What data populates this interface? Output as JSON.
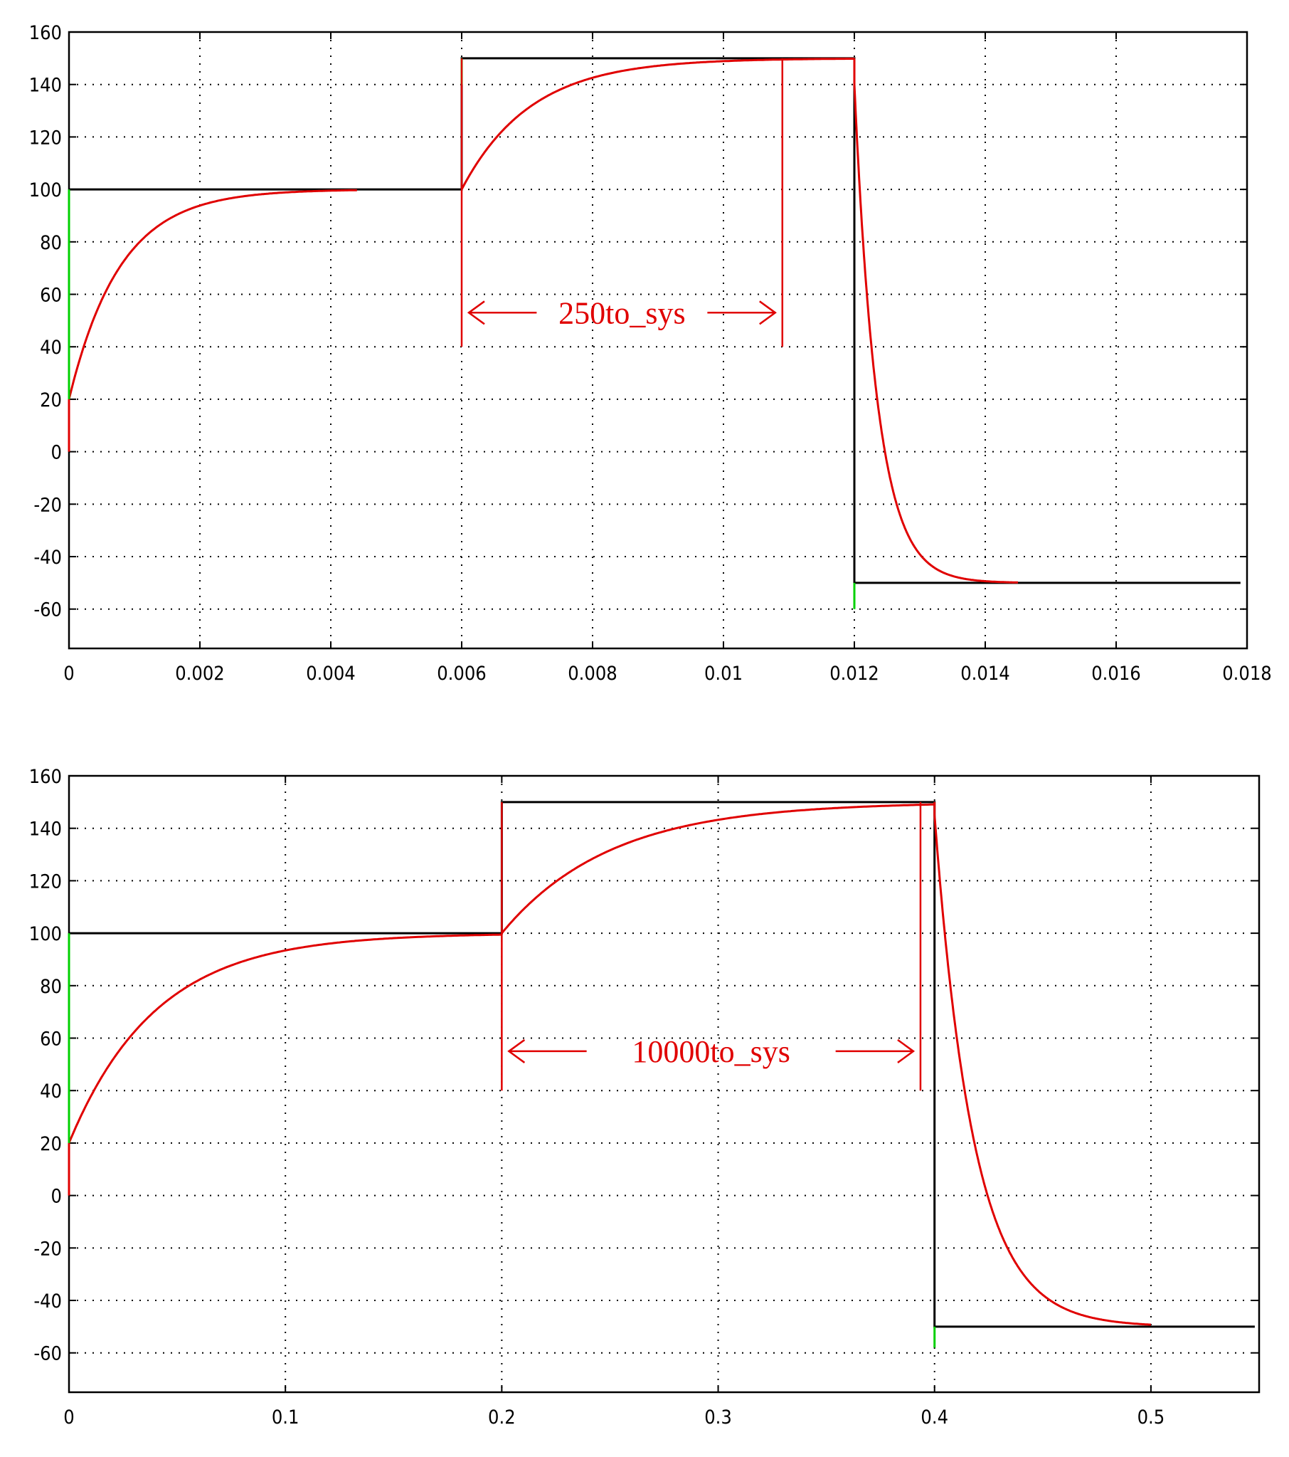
{
  "chart_data": [
    {
      "type": "line",
      "xlim": [
        0,
        0.018
      ],
      "ylim": [
        -75,
        160
      ],
      "grid": true,
      "x_ticks": [
        "0",
        "0.002",
        "0.004",
        "0.006",
        "0.008",
        "0.01",
        "0.012",
        "0.014",
        "0.016",
        "0.018"
      ],
      "x_tick_values": [
        0,
        0.002,
        0.004,
        0.006,
        0.008,
        0.01,
        0.012,
        0.014,
        0.016,
        0.018
      ],
      "y_ticks": [
        "160",
        "140",
        "120",
        "100",
        "80",
        "60",
        "40",
        "20",
        "0",
        "-20",
        "-40",
        "-60"
      ],
      "y_tick_values": [
        160,
        140,
        120,
        100,
        80,
        60,
        40,
        20,
        0,
        -20,
        -40,
        -60
      ],
      "series": [
        {
          "color": "#000000",
          "style": "step",
          "x": [
            0,
            0.006,
            0.006,
            0.012,
            0.012,
            0.0179
          ],
          "y": [
            100,
            100,
            150,
            150,
            -50,
            -50
          ]
        },
        {
          "color": "#e00000",
          "style": "first-order-response",
          "segments": [
            {
              "x_start": 0,
              "x_end": 0.0044,
              "y_start": 0,
              "y_end": 100,
              "y_jump": 20,
              "tau": 0.00078
            },
            {
              "x_start": 0.006,
              "x_end": 0.012,
              "y_start": 100,
              "y_end": 150,
              "tau": 0.00105
            },
            {
              "x_start": 0.012,
              "x_end": 0.0145,
              "y_start": 150,
              "y_end": -50,
              "y_jump": -10,
              "tau": 0.00035
            }
          ]
        },
        {
          "color": "#00d000",
          "style": "vertical-marks",
          "marks": [
            {
              "x": 0,
              "y_from": 100,
              "y_to": 20
            },
            {
              "x": 0.006,
              "y_from": 150,
              "y_to": 140
            },
            {
              "x": 0.012,
              "y_from": -50,
              "y_to": -60
            }
          ]
        }
      ],
      "annotation": {
        "label": "250to_sys",
        "color": "#e00000",
        "x_from": 0.006,
        "x_to": 0.0109,
        "y_arrow": 53,
        "y_bar_bottom": 40,
        "y_bar_top": 150
      }
    },
    {
      "type": "line",
      "xlim": [
        0,
        0.55
      ],
      "ylim": [
        -75,
        160
      ],
      "grid": true,
      "x_ticks": [
        "0",
        "0.1",
        "0.2",
        "0.3",
        "0.4",
        "0.5"
      ],
      "x_tick_values": [
        0,
        0.1,
        0.2,
        0.3,
        0.4,
        0.5
      ],
      "y_ticks": [
        "160",
        "140",
        "120",
        "100",
        "80",
        "60",
        "40",
        "20",
        "0",
        "-20",
        "-40",
        "-60"
      ],
      "y_tick_values": [
        160,
        140,
        120,
        100,
        80,
        60,
        40,
        20,
        0,
        -20,
        -40,
        -60
      ],
      "series": [
        {
          "color": "#000000",
          "style": "step",
          "x": [
            0,
            0.2,
            0.2,
            0.4,
            0.4,
            0.548
          ],
          "y": [
            100,
            100,
            150,
            150,
            -50,
            -50
          ]
        },
        {
          "color": "#e00000",
          "style": "first-order-response",
          "segments": [
            {
              "x_start": 0,
              "x_end": 0.2,
              "y_start": 0,
              "y_end": 100,
              "y_jump": 20,
              "tau": 0.04
            },
            {
              "x_start": 0.2,
              "x_end": 0.4,
              "y_start": 100,
              "y_end": 150,
              "tau": 0.05
            },
            {
              "x_start": 0.4,
              "x_end": 0.5,
              "y_start": 150,
              "y_end": -50,
              "y_jump": -5,
              "tau": 0.018
            }
          ]
        },
        {
          "color": "#00d000",
          "style": "vertical-marks",
          "marks": [
            {
              "x": 0,
              "y_from": 100,
              "y_to": 20
            },
            {
              "x": 0.4,
              "y_from": -50,
              "y_to": -58
            }
          ]
        }
      ],
      "annotation": {
        "label": "10000to_sys",
        "color": "#e00000",
        "x_from": 0.2,
        "x_to": 0.3935,
        "y_arrow": 55,
        "y_bar_bottom": 40,
        "y_bar_top": 150
      }
    }
  ]
}
